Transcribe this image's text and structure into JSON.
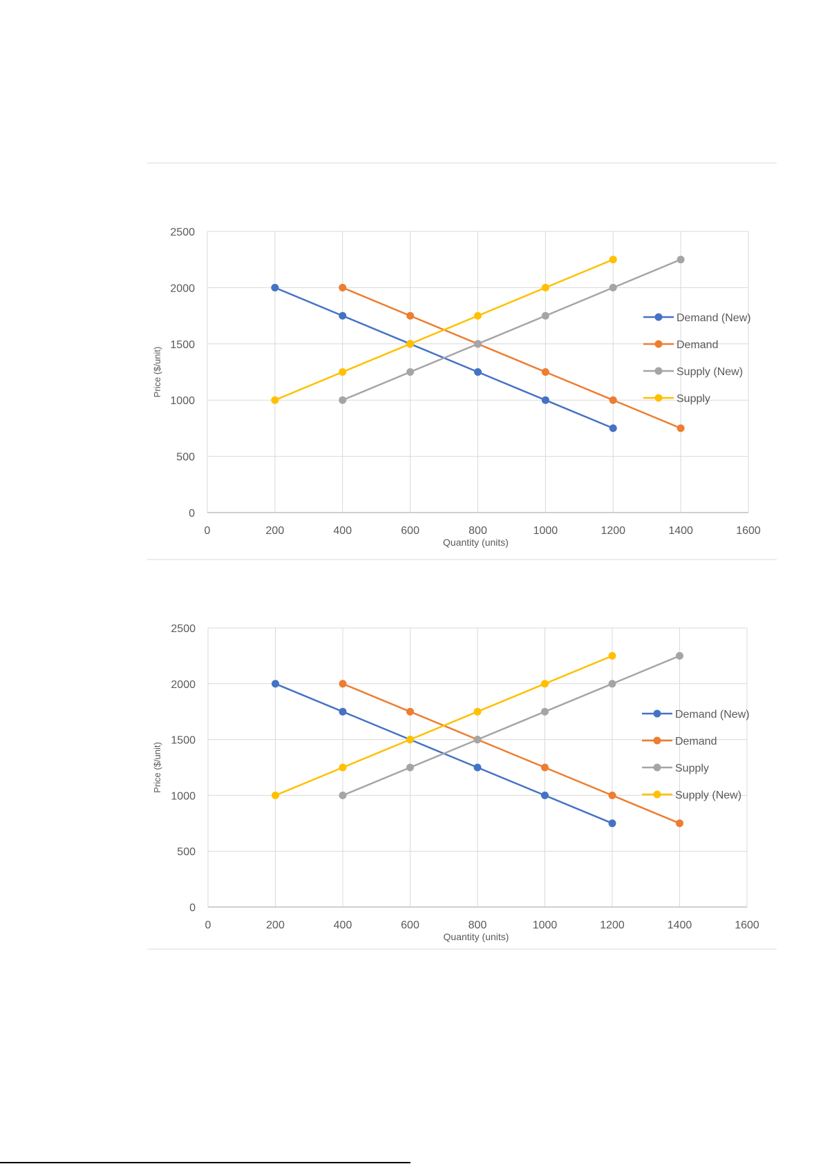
{
  "colors": {
    "blue": "#4472C4",
    "orange": "#ED7D31",
    "gray": "#A5A5A5",
    "yellow": "#FFC000",
    "grid": "#D9D9D9"
  },
  "chart_data": [
    {
      "type": "line",
      "title": "",
      "xlabel": "Quantity (units)",
      "ylabel": "Price ($/unit)",
      "xlim": [
        0,
        1600
      ],
      "ylim": [
        0,
        2500
      ],
      "xticks": [
        0,
        200,
        400,
        600,
        800,
        1000,
        1200,
        1400,
        1600
      ],
      "yticks": [
        0,
        500,
        1000,
        1500,
        2000,
        2500
      ],
      "grid": true,
      "legend_position": "right",
      "series": [
        {
          "name": "Demand (New)",
          "color": "#4472C4",
          "x": [
            200,
            400,
            600,
            800,
            1000,
            1200
          ],
          "y": [
            2000,
            1750,
            1500,
            1250,
            1000,
            750
          ]
        },
        {
          "name": "Demand",
          "color": "#ED7D31",
          "x": [
            400,
            600,
            800,
            1000,
            1200,
            1400
          ],
          "y": [
            2000,
            1750,
            1500,
            1250,
            1000,
            750
          ]
        },
        {
          "name": "Supply (New)",
          "color": "#A5A5A5",
          "x": [
            400,
            600,
            800,
            1000,
            1200,
            1400
          ],
          "y": [
            1000,
            1250,
            1500,
            1750,
            2000,
            2250
          ]
        },
        {
          "name": "Supply",
          "color": "#FFC000",
          "x": [
            200,
            400,
            600,
            800,
            1000,
            1200
          ],
          "y": [
            1000,
            1250,
            1500,
            1750,
            2000,
            2250
          ]
        }
      ]
    },
    {
      "type": "line",
      "title": "",
      "xlabel": "Quantity (units)",
      "ylabel": "Price ($/unit)",
      "xlim": [
        0,
        1600
      ],
      "ylim": [
        0,
        2500
      ],
      "xticks": [
        0,
        200,
        400,
        600,
        800,
        1000,
        1200,
        1400,
        1600
      ],
      "yticks": [
        0,
        500,
        1000,
        1500,
        2000,
        2500
      ],
      "grid": true,
      "legend_position": "right",
      "series": [
        {
          "name": "Demand (New)",
          "color": "#4472C4",
          "x": [
            200,
            400,
            600,
            800,
            1000,
            1200
          ],
          "y": [
            2000,
            1750,
            1500,
            1250,
            1000,
            750
          ]
        },
        {
          "name": "Demand",
          "color": "#ED7D31",
          "x": [
            400,
            600,
            800,
            1000,
            1200,
            1400
          ],
          "y": [
            2000,
            1750,
            1500,
            1250,
            1000,
            750
          ]
        },
        {
          "name": "Supply",
          "color": "#A5A5A5",
          "x": [
            400,
            600,
            800,
            1000,
            1200,
            1400
          ],
          "y": [
            1000,
            1250,
            1500,
            1750,
            2000,
            2250
          ]
        },
        {
          "name": "Supply (New)",
          "color": "#FFC000",
          "x": [
            200,
            400,
            600,
            800,
            1000,
            1200
          ],
          "y": [
            1000,
            1250,
            1500,
            1750,
            2000,
            2250
          ]
        }
      ]
    }
  ]
}
